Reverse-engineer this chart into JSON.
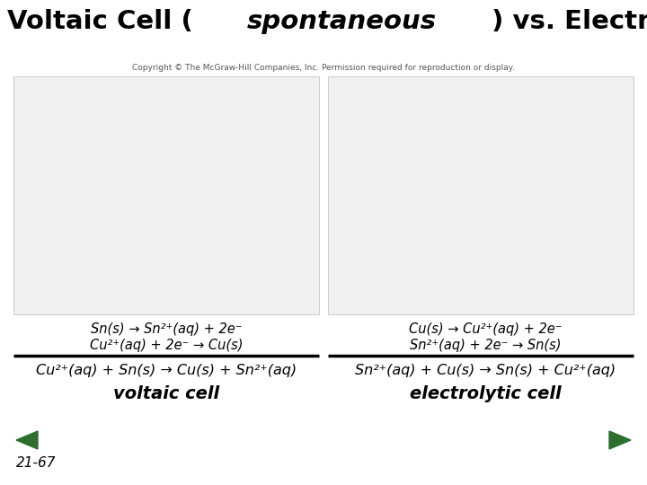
{
  "copyright": "Copyright © The McGraw-Hill Companies, Inc. Permission required for reproduction or display.",
  "left_reactions_line1": "Sn(s) → Sn²⁺(aq) + 2e⁻",
  "left_reactions_line2": "Cu²⁺(aq) + 2e⁻ → Cu(s)",
  "right_reactions_line1": "Cu(s) → Cu²⁺(aq) + 2e⁻",
  "right_reactions_line2": "Sn²⁺(aq) + 2e⁻ → Sn(s)",
  "left_overall": "Cu²⁺(aq) + Sn(s) → Cu(s) + Sn²⁺(aq)",
  "right_overall": "Sn²⁺(aq) + Cu(s) → Sn(s) + Cu²⁺(aq)",
  "left_label": "voltaic cell",
  "right_label": "electrolytic cell",
  "slide_number": "21-67",
  "bg_color": "#ffffff",
  "title_color": "#000000",
  "text_color": "#000000",
  "label_color": "#000000",
  "line_color": "#000000",
  "arrow_color": "#2d6e2d",
  "image_bg": "#e8e8f0",
  "title_fontsize": 21,
  "copyright_fontsize": 6.5,
  "reaction_fontsize": 10.5,
  "overall_fontsize": 11.5,
  "label_fontsize": 14,
  "slide_number_fontsize": 11
}
